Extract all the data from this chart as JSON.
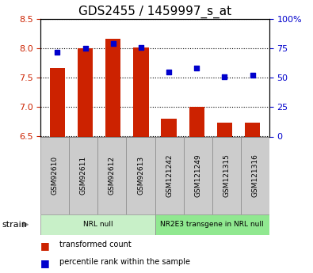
{
  "title": "GDS2455 / 1459997_s_at",
  "samples": [
    "GSM92610",
    "GSM92611",
    "GSM92612",
    "GSM92613",
    "GSM121242",
    "GSM121249",
    "GSM121315",
    "GSM121316"
  ],
  "red_values": [
    7.67,
    8.0,
    8.17,
    8.02,
    6.8,
    7.0,
    6.73,
    6.73
  ],
  "blue_values": [
    72,
    75,
    79,
    76,
    55,
    58,
    51,
    52
  ],
  "ylim_left": [
    6.5,
    8.5
  ],
  "ylim_right": [
    0,
    100
  ],
  "yticks_left": [
    6.5,
    7.0,
    7.5,
    8.0,
    8.5
  ],
  "yticks_right": [
    0,
    25,
    50,
    75,
    100
  ],
  "groups": [
    {
      "label": "NRL null",
      "start": 0,
      "end": 3,
      "color": "#c8f0c8"
    },
    {
      "label": "NR2E3 transgene in NRL null",
      "start": 4,
      "end": 7,
      "color": "#90e890"
    }
  ],
  "red_color": "#cc2200",
  "blue_color": "#0000cc",
  "bar_bottom": 6.5,
  "grid_color": "black",
  "legend_items": [
    "transformed count",
    "percentile rank within the sample"
  ],
  "strain_label": "strain",
  "tick_bg_color": "#cccccc",
  "title_fontsize": 11,
  "axis_label_color_left": "#cc2200",
  "axis_label_color_right": "#0000cc"
}
